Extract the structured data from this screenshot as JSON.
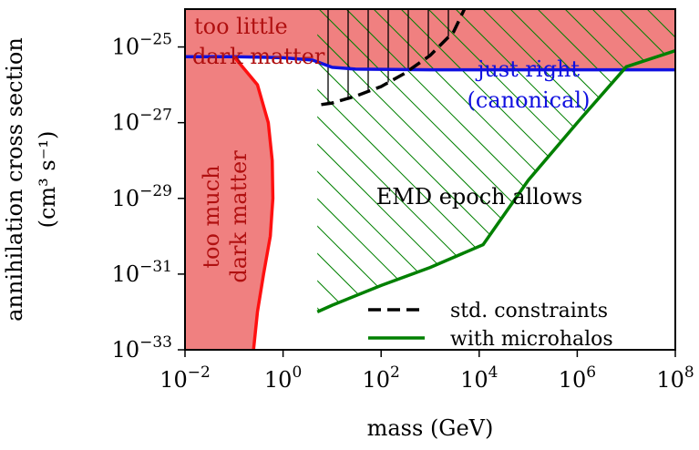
{
  "chart_data": {
    "type": "line",
    "xlabel": "mass (GeV)",
    "ylabel_line1": "annihilation cross section",
    "ylabel_line2": "(cm³ s⁻¹)",
    "xscale": "log",
    "yscale": "log",
    "xlim": [
      0.01,
      100000000
    ],
    "ylim": [
      1e-33,
      1e-24
    ],
    "x_ticks": [
      {
        "value": 0.01,
        "base": "10",
        "exp": "−2"
      },
      {
        "value": 1,
        "base": "10",
        "exp": "0"
      },
      {
        "value": 100,
        "base": "10",
        "exp": "2"
      },
      {
        "value": 10000,
        "base": "10",
        "exp": "4"
      },
      {
        "value": 1000000,
        "base": "10",
        "exp": "6"
      },
      {
        "value": 100000000,
        "base": "10",
        "exp": "8"
      }
    ],
    "y_ticks": [
      {
        "value": 1e-33,
        "base": "10",
        "exp": "−33"
      },
      {
        "value": 1e-31,
        "base": "10",
        "exp": "−31"
      },
      {
        "value": 1e-29,
        "base": "10",
        "exp": "−29"
      },
      {
        "value": 1e-27,
        "base": "10",
        "exp": "−27"
      },
      {
        "value": 1e-25,
        "base": "10",
        "exp": "−25"
      }
    ],
    "grid": false,
    "legend_position": "bottom-right",
    "series": [
      {
        "name": "std. constraints",
        "color": "#000000",
        "style": "dashed",
        "points": [
          [
            6,
            3e-27
          ],
          [
            10,
            3.3e-27
          ],
          [
            30,
            5e-27
          ],
          [
            100,
            9e-27
          ],
          [
            300,
            2e-26
          ],
          [
            1000,
            6e-26
          ],
          [
            3000,
            2.5e-25
          ],
          [
            5000,
            1e-24
          ]
        ]
      },
      {
        "name": "with microhalos",
        "color": "#008000",
        "style": "solid",
        "points": [
          [
            5,
            1e-32
          ],
          [
            10,
            1.5e-32
          ],
          [
            100,
            5e-32
          ],
          [
            1000,
            1.5e-31
          ],
          [
            12000,
            6e-31
          ],
          [
            100000,
            3e-29
          ],
          [
            1000000,
            1e-27
          ],
          [
            10000000,
            3e-26
          ],
          [
            100000000,
            8e-26
          ]
        ]
      },
      {
        "name": "",
        "color": "#1010e0",
        "style": "solid",
        "points": [
          [
            0.01,
            5.5e-26
          ],
          [
            0.1,
            5.5e-26
          ],
          [
            0.3,
            5.4e-26
          ],
          [
            1,
            5.2e-26
          ],
          [
            4,
            4.5e-26
          ],
          [
            10,
            2.9e-26
          ],
          [
            30,
            2.6e-26
          ],
          [
            1000,
            2.5e-26
          ],
          [
            100000000,
            2.5e-26
          ]
        ]
      },
      {
        "name": "",
        "color": "#ff1010",
        "style": "solid",
        "points": [
          [
            0.1,
            5.5e-26
          ],
          [
            0.3,
            1e-26
          ],
          [
            0.5,
            1e-27
          ],
          [
            0.6,
            1e-28
          ],
          [
            0.62,
            1e-29
          ],
          [
            0.55,
            1e-30
          ],
          [
            0.4,
            1e-31
          ],
          [
            0.3,
            1e-32
          ],
          [
            0.25,
            1e-33
          ]
        ]
      }
    ],
    "regions": [
      {
        "label": [
          "too little",
          "dark matter"
        ],
        "color": "#f08080",
        "text_color": "#b01010"
      },
      {
        "label": [
          "too much",
          "dark matter"
        ],
        "color": "#f08080",
        "text_color": "#b01010"
      },
      {
        "label": [
          "just right",
          "(canonical)"
        ],
        "text_color": "#1010e0"
      },
      {
        "label": [
          "EMD epoch allows"
        ],
        "text_color": "#000000"
      }
    ],
    "colors": {
      "fill": "#f08080",
      "hatch_green": "#008000",
      "axis": "#000000"
    }
  }
}
